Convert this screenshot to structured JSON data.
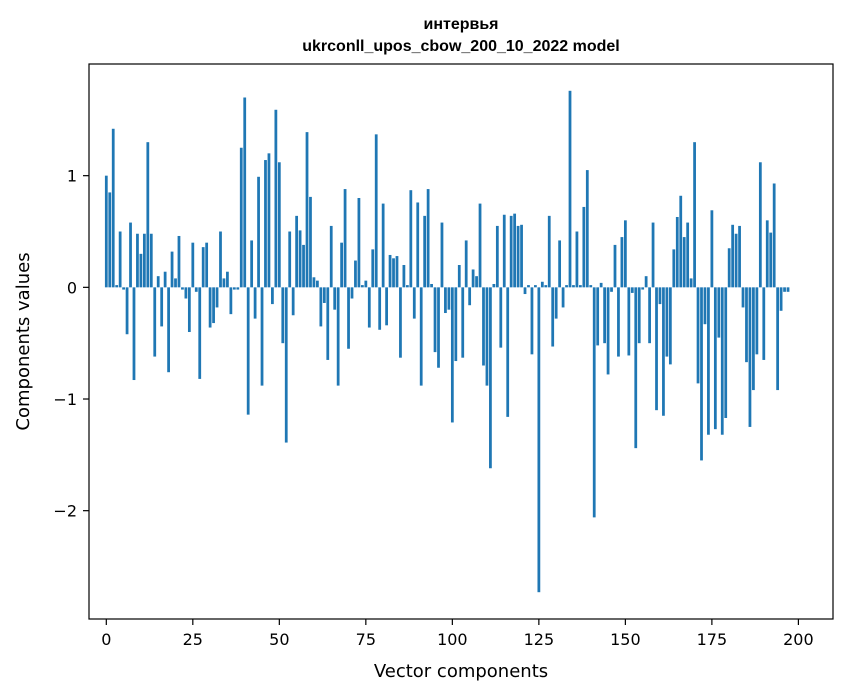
{
  "chart_data": {
    "type": "bar",
    "title": "интервья",
    "subtitle": "ukrconll_upos_cbow_200_10_2022 model",
    "xlabel": "Vector components",
    "ylabel": "Components values",
    "xlim": [
      -5,
      210
    ],
    "ylim": [
      -2.97,
      2.0
    ],
    "xticks": [
      0,
      25,
      50,
      75,
      100,
      125,
      150,
      175,
      200
    ],
    "yticks": [
      -2,
      -1,
      0,
      1
    ],
    "ytick_labels": [
      "−2",
      "−1",
      "0",
      "1"
    ],
    "grid": false,
    "bar_color": "#1f77b4",
    "values": [
      1.0,
      0.85,
      1.42,
      0.02,
      0.5,
      -0.02,
      -0.42,
      0.58,
      -0.83,
      0.48,
      0.3,
      0.48,
      1.3,
      0.48,
      -0.62,
      0.1,
      -0.35,
      0.14,
      -0.76,
      0.32,
      0.08,
      0.46,
      -0.02,
      -0.1,
      -0.4,
      0.4,
      -0.04,
      -0.82,
      0.36,
      0.4,
      -0.36,
      -0.32,
      -0.18,
      0.5,
      0.08,
      0.14,
      -0.24,
      -0.02,
      -0.02,
      1.25,
      1.7,
      -1.14,
      0.42,
      -0.28,
      0.99,
      -0.88,
      1.14,
      1.2,
      -0.15,
      1.59,
      1.12,
      -0.5,
      -1.39,
      0.5,
      -0.25,
      0.64,
      0.51,
      0.38,
      1.39,
      0.81,
      0.09,
      0.06,
      -0.35,
      -0.14,
      -0.65,
      0.55,
      -0.2,
      -0.88,
      0.4,
      0.88,
      -0.55,
      -0.1,
      0.24,
      0.8,
      0.02,
      0.06,
      -0.36,
      0.34,
      1.37,
      -0.38,
      0.75,
      -0.34,
      0.29,
      0.26,
      0.28,
      -0.63,
      0.2,
      0.02,
      0.87,
      -0.28,
      0.76,
      -0.88,
      0.64,
      0.88,
      0.03,
      -0.58,
      -0.72,
      0.58,
      -0.23,
      -0.2,
      -1.21,
      -0.66,
      0.2,
      -0.63,
      0.42,
      -0.16,
      0.16,
      0.1,
      0.75,
      -0.7,
      -0.88,
      -1.62,
      0.03,
      0.55,
      -0.54,
      0.65,
      -1.16,
      0.64,
      0.66,
      0.55,
      0.56,
      -0.06,
      0.02,
      -0.6,
      0.02,
      -2.73,
      0.05,
      0.02,
      0.64,
      -0.53,
      -0.28,
      0.42,
      -0.18,
      0.02,
      1.76,
      0.02,
      0.5,
      0.02,
      0.72,
      1.05,
      0.02,
      -2.06,
      -0.52,
      0.04,
      -0.5,
      -0.78,
      -0.04,
      0.38,
      -0.62,
      0.45,
      0.6,
      -0.61,
      -0.05,
      -1.44,
      -0.5,
      -0.02,
      0.1,
      -0.5,
      0.58,
      -1.1,
      -0.15,
      -1.15,
      -0.62,
      -0.69,
      0.34,
      0.63,
      0.82,
      0.45,
      0.58,
      0.08,
      1.3,
      -0.86,
      -1.55,
      -0.33,
      -1.32,
      0.69,
      -1.27,
      -0.45,
      -1.32,
      -1.17,
      0.35,
      0.56,
      0.48,
      0.55,
      -0.18,
      -0.67,
      -1.25,
      -0.92,
      -0.6,
      1.12,
      -0.65,
      0.6,
      0.49,
      0.93,
      -0.92,
      -0.21,
      -0.04,
      -0.04
    ]
  }
}
